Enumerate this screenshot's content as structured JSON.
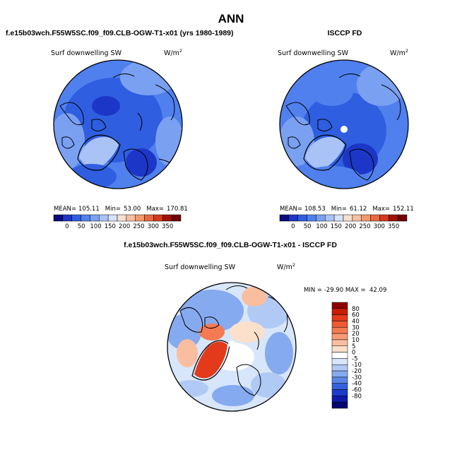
{
  "page_title": "ANN",
  "chart_data": [
    {
      "type": "heatmap",
      "projection": "north-polar-stereographic",
      "title": "f.e15b03wch.F55W5SC.f09_f09.CLB-OGW-T1-x01 (yrs 1980-1989)",
      "variable": "Surf downwelling SW",
      "units_base": "W/m",
      "units_exp": "2",
      "stats": {
        "mean_label": "MEAN=",
        "mean": "105.11",
        "min_label": "Min=",
        "min": "53.00",
        "max_label": "Max=",
        "max": "170.81"
      },
      "colorbar": {
        "orientation": "horizontal",
        "levels": [
          "0",
          "50",
          "100",
          "150",
          "200",
          "250",
          "300",
          "350"
        ],
        "colors": [
          "#0a0a7a",
          "#1c36c8",
          "#2f5ee0",
          "#4f80ee",
          "#7aa0f2",
          "#a9c3f7",
          "#d6e3fa",
          "#f7e0d2",
          "#f7bfa0",
          "#f3996c",
          "#e8693f",
          "#d23b1e",
          "#a01208",
          "#6e0000"
        ]
      }
    },
    {
      "type": "heatmap",
      "projection": "north-polar-stereographic",
      "title": "ISCCP FD",
      "variable": "Surf downwelling SW",
      "units_base": "W/m",
      "units_exp": "2",
      "stats": {
        "mean_label": "MEAN=",
        "mean": "108.53",
        "min_label": "Min=",
        "min": "61.12",
        "max_label": "Max=",
        "max": "152.11"
      },
      "colorbar": {
        "orientation": "horizontal",
        "levels": [
          "0",
          "50",
          "100",
          "150",
          "200",
          "250",
          "300",
          "350"
        ],
        "colors": [
          "#0a0a7a",
          "#1c36c8",
          "#2f5ee0",
          "#4f80ee",
          "#7aa0f2",
          "#a9c3f7",
          "#d6e3fa",
          "#f7e0d2",
          "#f7bfa0",
          "#f3996c",
          "#e8693f",
          "#d23b1e",
          "#a01208",
          "#6e0000"
        ]
      }
    },
    {
      "type": "heatmap",
      "projection": "north-polar-stereographic",
      "title": "f.e15b03wch.F55W5SC.f09_f09.CLB-OGW-T1-x01 - ISCCP FD",
      "variable": "Surf downwelling SW",
      "units_base": "W/m",
      "units_exp": "2",
      "stats_line": "MIN = -29.90 MAX =  42.09",
      "colorbar": {
        "orientation": "vertical",
        "levels": [
          "80",
          "60",
          "40",
          "30",
          "20",
          "10",
          "5",
          "0",
          "-5",
          "-10",
          "-20",
          "-30",
          "-40",
          "-60",
          "-80"
        ],
        "colors": [
          "#8c0000",
          "#c81c00",
          "#e23a1a",
          "#ee5a32",
          "#f47a52",
          "#f79c76",
          "#f9bea0",
          "#fbe0cc",
          "#ffffff",
          "#d8e6fb",
          "#b0caf5",
          "#86aaef",
          "#5b86e6",
          "#3660dc",
          "#1d3ccc",
          "#0f1aa8",
          "#05056e"
        ]
      }
    }
  ]
}
